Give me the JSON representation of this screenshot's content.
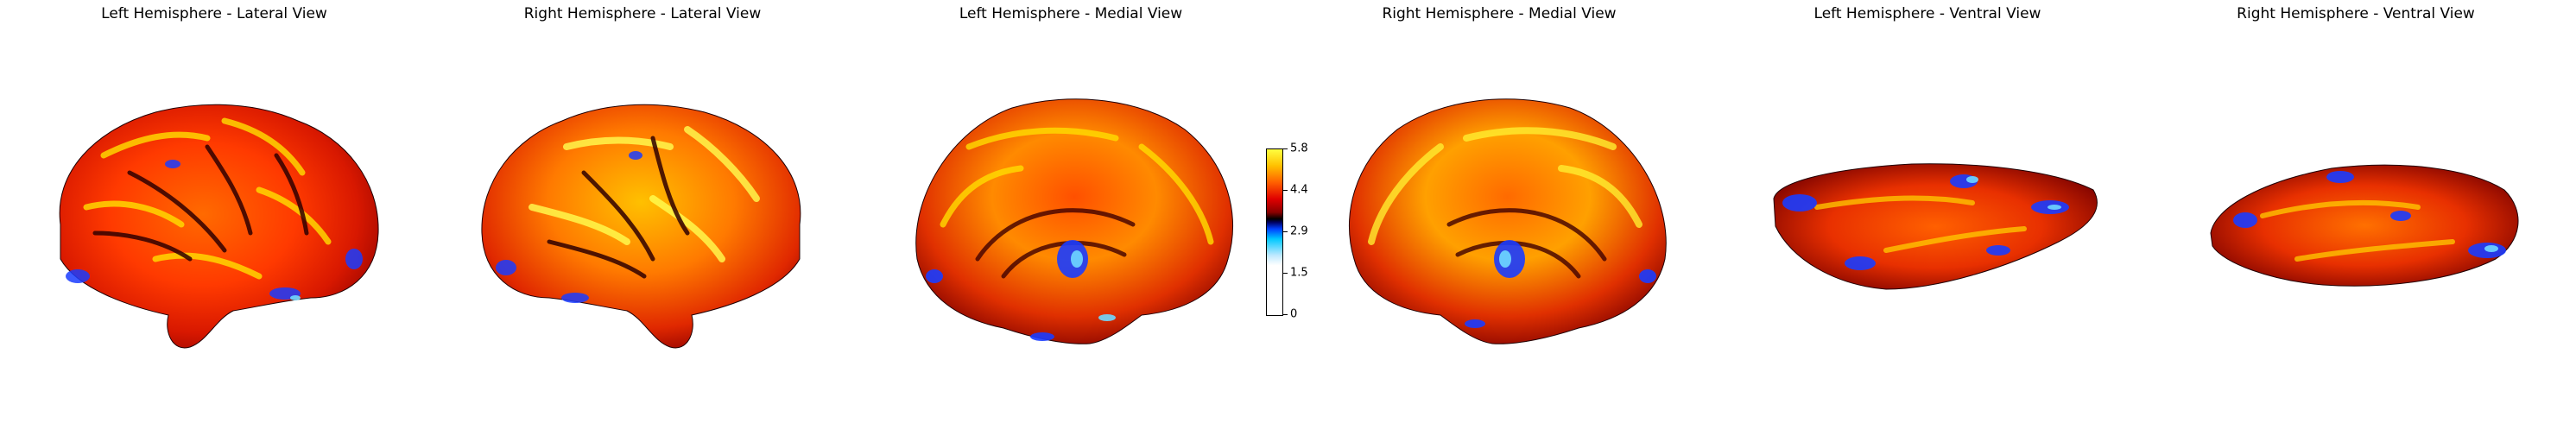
{
  "panels": [
    {
      "title": "Left Hemisphere - Lateral View"
    },
    {
      "title": "Right Hemisphere - Lateral View"
    },
    {
      "title": "Left Hemisphere - Medial View"
    },
    {
      "title": "Right Hemisphere - Medial View"
    },
    {
      "title": "Left Hemisphere - Ventral View"
    },
    {
      "title": "Right Hemisphere - Ventral View"
    }
  ],
  "colorbar": {
    "ticks": [
      "5.8",
      "4.4",
      "2.9",
      "1.5",
      "0"
    ],
    "colors": {
      "high": "#ffff40",
      "mid_high": "#ff6000",
      "mid": "#e00000",
      "dark": "#000000",
      "low": "#0040ff",
      "lowest": "#00c8ff",
      "min": "#ffffff"
    }
  }
}
